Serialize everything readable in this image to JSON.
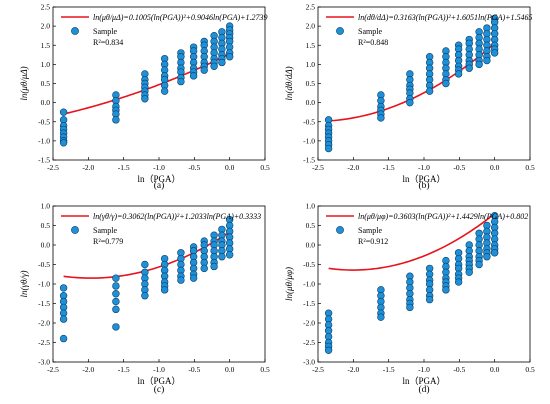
{
  "chart_data": [
    {
      "type": "scatter",
      "caption": "(a)",
      "xlabel": "ln（PGA）",
      "ylabel": "ln(μθ/μΔ)",
      "xlim": [
        -2.5,
        0.5
      ],
      "ylim": [
        -1.5,
        2.5
      ],
      "xticks": [
        "-2.5",
        "-2.0",
        "-1.5",
        "-1.0",
        "-0.5",
        "0.0",
        "0.5"
      ],
      "yticks": [
        "-1.5",
        "-1.0",
        "-0.5",
        "0.0",
        "0.5",
        "1.0",
        "1.5",
        "2.0",
        "2.5"
      ],
      "grid": false,
      "legend_position": "top-left",
      "series": [
        {
          "name": "ln(μθ/μΔ)=0.1005(ln(PGA))²+0.9046ln(PGA)+1.2739",
          "kind": "fit",
          "coeffs": [
            0.1005,
            0.9046,
            1.2739
          ],
          "color": "#e8141b"
        },
        {
          "name": "Sample",
          "kind": "points",
          "color": "#1e90d8",
          "x": [
            -2.35,
            -2.35,
            -2.35,
            -2.35,
            -2.35,
            -2.35,
            -2.35,
            -2.35,
            -1.61,
            -1.61,
            -1.61,
            -1.61,
            -1.61,
            -1.61,
            -1.2,
            -1.2,
            -1.2,
            -1.2,
            -1.2,
            -1.2,
            -1.2,
            -0.92,
            -0.92,
            -0.92,
            -0.92,
            -0.92,
            -0.92,
            -0.92,
            -0.69,
            -0.69,
            -0.69,
            -0.69,
            -0.69,
            -0.69,
            -0.69,
            -0.51,
            -0.51,
            -0.51,
            -0.51,
            -0.51,
            -0.51,
            -0.51,
            -0.36,
            -0.36,
            -0.36,
            -0.36,
            -0.36,
            -0.36,
            -0.36,
            -0.22,
            -0.22,
            -0.22,
            -0.22,
            -0.22,
            -0.22,
            -0.22,
            -0.11,
            -0.11,
            -0.11,
            -0.11,
            -0.11,
            -0.11,
            -0.11,
            0,
            0,
            0,
            0,
            0,
            0,
            0,
            0
          ],
          "y": [
            -0.25,
            -0.45,
            -0.6,
            -0.7,
            -0.8,
            -0.9,
            -1.0,
            -1.05,
            0.2,
            0.05,
            -0.1,
            -0.2,
            -0.3,
            -0.45,
            0.75,
            0.6,
            0.5,
            0.4,
            0.3,
            0.2,
            0.1,
            1.15,
            1.0,
            0.85,
            0.7,
            0.6,
            0.45,
            0.3,
            1.3,
            1.2,
            1.05,
            0.9,
            0.8,
            0.65,
            0.55,
            1.45,
            1.35,
            1.2,
            1.05,
            0.9,
            0.8,
            0.7,
            1.6,
            1.5,
            1.35,
            1.2,
            1.05,
            0.95,
            0.85,
            1.75,
            1.6,
            1.45,
            1.3,
            1.15,
            1.05,
            0.95,
            1.85,
            1.7,
            1.55,
            1.4,
            1.25,
            1.15,
            1.05,
            2.0,
            1.9,
            1.8,
            1.7,
            1.6,
            1.45,
            1.3,
            1.2
          ]
        }
      ],
      "annotation": "R²=0.834"
    },
    {
      "type": "scatter",
      "caption": "(b)",
      "xlabel": "ln（PGA）",
      "ylabel": "ln(dθ/dΔ)",
      "xlim": [
        -2.5,
        0.5
      ],
      "ylim": [
        -1.5,
        2.5
      ],
      "xticks": [
        "-2.5",
        "-2.0",
        "-1.5",
        "-1.0",
        "-0.5",
        "0.0",
        "0.5"
      ],
      "yticks": [
        "-1.5",
        "-1.0",
        "-0.5",
        "0.0",
        "0.5",
        "1.0",
        "1.5",
        "2.0",
        "2.5"
      ],
      "grid": false,
      "legend_position": "top-left",
      "series": [
        {
          "name": "ln(dθ/dΔ)=0.3163(ln(PGA))²+1.6051ln(PGA)+1.5465",
          "kind": "fit",
          "coeffs": [
            0.3163,
            1.6051,
            1.5465
          ],
          "color": "#e8141b"
        },
        {
          "name": "Sample",
          "kind": "points",
          "color": "#1e90d8",
          "x": [
            -2.35,
            -2.35,
            -2.35,
            -2.35,
            -2.35,
            -2.35,
            -2.35,
            -2.35,
            -1.61,
            -1.61,
            -1.61,
            -1.61,
            -1.61,
            -1.61,
            -1.2,
            -1.2,
            -1.2,
            -1.2,
            -1.2,
            -1.2,
            -1.2,
            -0.92,
            -0.92,
            -0.92,
            -0.92,
            -0.92,
            -0.92,
            -0.92,
            -0.69,
            -0.69,
            -0.69,
            -0.69,
            -0.69,
            -0.69,
            -0.69,
            -0.51,
            -0.51,
            -0.51,
            -0.51,
            -0.51,
            -0.51,
            -0.51,
            -0.36,
            -0.36,
            -0.36,
            -0.36,
            -0.36,
            -0.36,
            -0.36,
            -0.22,
            -0.22,
            -0.22,
            -0.22,
            -0.22,
            -0.22,
            -0.22,
            -0.11,
            -0.11,
            -0.11,
            -0.11,
            -0.11,
            -0.11,
            -0.11,
            0,
            0,
            0,
            0,
            0,
            0,
            0,
            0
          ],
          "y": [
            -0.45,
            -0.6,
            -0.7,
            -0.8,
            -0.9,
            -1.0,
            -1.1,
            -1.2,
            0.2,
            0.05,
            -0.1,
            -0.2,
            -0.3,
            -0.4,
            0.75,
            0.6,
            0.45,
            0.35,
            0.25,
            0.1,
            0.0,
            1.2,
            1.05,
            0.9,
            0.75,
            0.6,
            0.45,
            0.3,
            1.35,
            1.2,
            1.05,
            0.9,
            0.75,
            0.6,
            0.5,
            1.5,
            1.4,
            1.25,
            1.1,
            0.95,
            0.85,
            0.75,
            1.65,
            1.55,
            1.4,
            1.25,
            1.1,
            1.0,
            0.9,
            1.85,
            1.7,
            1.55,
            1.4,
            1.25,
            1.1,
            1.0,
            1.95,
            1.8,
            1.65,
            1.5,
            1.35,
            1.2,
            1.1,
            2.2,
            2.1,
            1.95,
            1.8,
            1.65,
            1.5,
            1.4,
            1.3
          ]
        }
      ],
      "annotation": "R²=0.848"
    },
    {
      "type": "scatter",
      "caption": "(c)",
      "xlabel": "ln（PGA）",
      "ylabel": "ln(γθ/γ)",
      "xlim": [
        -2.5,
        0.5
      ],
      "ylim": [
        -3.0,
        1.0
      ],
      "xticks": [
        "-2.5",
        "-2.0",
        "-1.5",
        "-1.0",
        "-0.5",
        "0.0",
        "0.5"
      ],
      "yticks": [
        "-3.0",
        "-2.5",
        "-2.0",
        "-1.5",
        "-1.0",
        "-0.5",
        "0.0",
        "0.5",
        "1.0"
      ],
      "grid": false,
      "legend_position": "top-left",
      "series": [
        {
          "name": "ln(γθ/γ)=0.3062(ln(PGA))²+1.2033ln(PGA)+0.3333",
          "kind": "fit",
          "coeffs": [
            0.3062,
            1.2033,
            0.3333
          ],
          "color": "#e8141b"
        },
        {
          "name": "Sample",
          "kind": "points",
          "color": "#1e90d8",
          "x": [
            -2.35,
            -2.35,
            -2.35,
            -2.35,
            -2.35,
            -2.35,
            -2.35,
            -1.61,
            -1.61,
            -1.61,
            -1.61,
            -1.61,
            -1.61,
            -1.2,
            -1.2,
            -1.2,
            -1.2,
            -1.2,
            -1.2,
            -0.92,
            -0.92,
            -0.92,
            -0.92,
            -0.92,
            -0.92,
            -0.92,
            -0.69,
            -0.69,
            -0.69,
            -0.69,
            -0.69,
            -0.69,
            -0.51,
            -0.51,
            -0.51,
            -0.51,
            -0.51,
            -0.51,
            -0.51,
            -0.36,
            -0.36,
            -0.36,
            -0.36,
            -0.36,
            -0.36,
            -0.22,
            -0.22,
            -0.22,
            -0.22,
            -0.22,
            -0.22,
            -0.22,
            -0.11,
            -0.11,
            -0.11,
            -0.11,
            -0.11,
            -0.11,
            0,
            0,
            0,
            0,
            0,
            0,
            0
          ],
          "y": [
            -1.1,
            -1.3,
            -1.45,
            -1.6,
            -1.75,
            -1.9,
            -2.4,
            -0.85,
            -1.05,
            -1.25,
            -1.45,
            -1.65,
            -2.1,
            -0.5,
            -0.7,
            -0.85,
            -1.0,
            -1.15,
            -1.3,
            -0.35,
            -0.5,
            -0.65,
            -0.8,
            -0.95,
            -1.05,
            -1.15,
            -0.2,
            -0.35,
            -0.5,
            -0.65,
            -0.8,
            -0.9,
            -0.05,
            -0.15,
            -0.3,
            -0.45,
            -0.6,
            -0.75,
            -0.85,
            0.1,
            0.0,
            -0.15,
            -0.3,
            -0.45,
            -0.6,
            0.25,
            0.1,
            0.0,
            -0.15,
            -0.3,
            -0.45,
            -0.55,
            0.4,
            0.25,
            0.1,
            0.0,
            -0.15,
            -0.3,
            0.65,
            0.5,
            0.35,
            0.2,
            0.05,
            -0.1,
            -0.25
          ]
        }
      ],
      "annotation": "R²=0.779"
    },
    {
      "type": "scatter",
      "caption": "(d)",
      "xlabel": "ln（PGA）",
      "ylabel": "ln(μθ/μφ)",
      "xlim": [
        -2.5,
        0.5
      ],
      "ylim": [
        -3.0,
        1.0
      ],
      "xticks": [
        "-2.5",
        "-2.0",
        "-1.5",
        "-1.0",
        "-0.5",
        "0.0",
        "0.5"
      ],
      "yticks": [
        "-3.0",
        "-2.5",
        "-2.0",
        "-1.5",
        "-1.0",
        "-0.5",
        "0.0",
        "0.5",
        "1.0"
      ],
      "grid": false,
      "legend_position": "top-left",
      "series": [
        {
          "name": "ln(μθ/μφ)=0.3603(ln(PGA))²+1.4429ln(PGA)+0.802",
          "kind": "fit",
          "coeffs": [
            0.3603,
            1.4429,
            0.802
          ],
          "color": "#e8141b"
        },
        {
          "name": "Sample",
          "kind": "points",
          "color": "#1e90d8",
          "x": [
            -2.35,
            -2.35,
            -2.35,
            -2.35,
            -2.35,
            -2.35,
            -2.35,
            -2.35,
            -1.61,
            -1.61,
            -1.61,
            -1.61,
            -1.61,
            -1.61,
            -1.2,
            -1.2,
            -1.2,
            -1.2,
            -1.2,
            -1.2,
            -1.2,
            -0.92,
            -0.92,
            -0.92,
            -0.92,
            -0.92,
            -0.92,
            -0.92,
            -0.69,
            -0.69,
            -0.69,
            -0.69,
            -0.69,
            -0.69,
            -0.69,
            -0.51,
            -0.51,
            -0.51,
            -0.51,
            -0.51,
            -0.51,
            -0.51,
            -0.36,
            -0.36,
            -0.36,
            -0.36,
            -0.36,
            -0.36,
            -0.36,
            -0.22,
            -0.22,
            -0.22,
            -0.22,
            -0.22,
            -0.22,
            -0.22,
            -0.11,
            -0.11,
            -0.11,
            -0.11,
            -0.11,
            -0.11,
            -0.11,
            0,
            0,
            0,
            0,
            0,
            0,
            0,
            0
          ],
          "y": [
            -1.75,
            -1.9,
            -2.05,
            -2.2,
            -2.35,
            -2.5,
            -2.6,
            -2.7,
            -1.15,
            -1.3,
            -1.45,
            -1.6,
            -1.75,
            -1.85,
            -0.8,
            -0.95,
            -1.1,
            -1.25,
            -1.4,
            -1.5,
            -1.6,
            -0.6,
            -0.75,
            -0.9,
            -1.0,
            -1.15,
            -1.3,
            -1.4,
            -0.4,
            -0.55,
            -0.7,
            -0.85,
            -0.95,
            -1.05,
            -1.15,
            -0.2,
            -0.35,
            -0.5,
            -0.6,
            -0.75,
            -0.85,
            -0.95,
            0.0,
            -0.15,
            -0.3,
            -0.4,
            -0.5,
            -0.6,
            -0.7,
            0.3,
            0.15,
            0.0,
            -0.15,
            -0.3,
            -0.4,
            -0.5,
            0.5,
            0.35,
            0.2,
            0.05,
            -0.1,
            -0.2,
            -0.3,
            0.75,
            0.6,
            0.45,
            0.3,
            0.15,
            0.0,
            -0.1,
            -0.2
          ]
        }
      ],
      "annotation": "R²=0.912"
    }
  ]
}
